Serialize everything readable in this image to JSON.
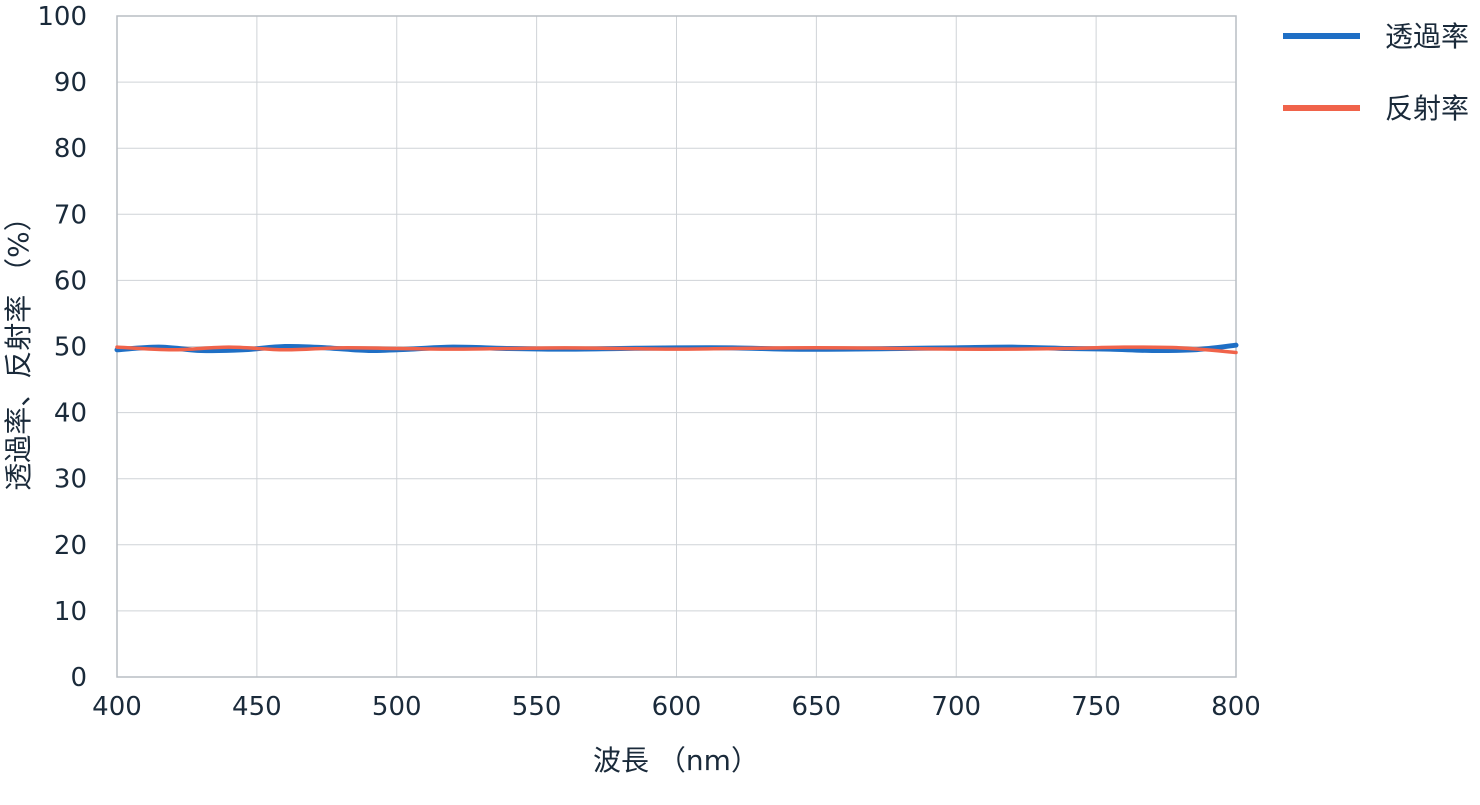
{
  "chart_data": {
    "type": "line",
    "title": "",
    "xlabel": "波長 （nm）",
    "ylabel": "透過率、反射率 （%）",
    "xlim": [
      400,
      800
    ],
    "ylim": [
      0,
      100
    ],
    "xticks": [
      "400",
      "450",
      "500",
      "550",
      "600",
      "650",
      "700",
      "750",
      "800"
    ],
    "yticks": [
      "0",
      "10",
      "20",
      "30",
      "40",
      "50",
      "60",
      "70",
      "80",
      "90",
      "100"
    ],
    "grid": true,
    "legend_position": "right-top",
    "series": [
      {
        "name": "透過率",
        "color": "#1f6fc5",
        "x": [
          400,
          415,
          430,
          445,
          460,
          475,
          490,
          505,
          520,
          540,
          560,
          580,
          600,
          620,
          640,
          660,
          680,
          700,
          720,
          740,
          755,
          770,
          785,
          800
        ],
        "y": [
          49.5,
          49.9,
          49.4,
          49.5,
          50.0,
          49.8,
          49.4,
          49.6,
          49.9,
          49.7,
          49.6,
          49.7,
          49.8,
          49.8,
          49.6,
          49.6,
          49.7,
          49.8,
          49.9,
          49.7,
          49.6,
          49.4,
          49.5,
          50.2
        ]
      },
      {
        "name": "反射率",
        "color": "#f0634a",
        "x": [
          400,
          420,
          440,
          460,
          480,
          500,
          520,
          540,
          560,
          580,
          600,
          620,
          640,
          660,
          680,
          700,
          720,
          740,
          760,
          780,
          800
        ],
        "y": [
          49.9,
          49.5,
          49.9,
          49.5,
          49.8,
          49.7,
          49.6,
          49.7,
          49.8,
          49.7,
          49.6,
          49.7,
          49.8,
          49.8,
          49.7,
          49.6,
          49.6,
          49.7,
          49.9,
          49.8,
          49.1
        ]
      }
    ]
  }
}
